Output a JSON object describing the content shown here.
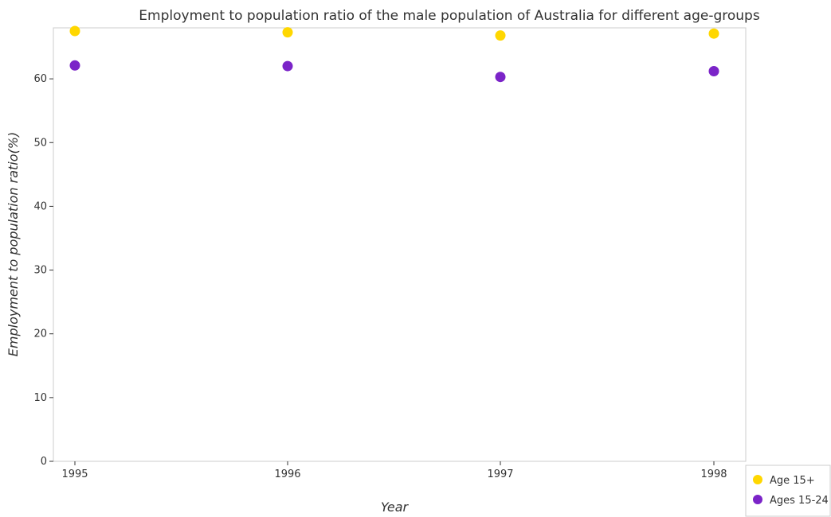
{
  "chart_data": {
    "type": "scatter",
    "title": "Employment to population ratio of the male population of Australia for different age-groups",
    "xlabel": "Year",
    "ylabel": "Employment to population ratio(%)",
    "categories": [
      "1995",
      "1996",
      "1997",
      "1998"
    ],
    "ylim": [
      0,
      68
    ],
    "yticks": [
      0,
      10,
      20,
      30,
      40,
      50,
      60
    ],
    "grid": false,
    "legend_position": "bottom-right",
    "series": [
      {
        "name": "Age 15+",
        "color": "#ffd700",
        "values": [
          67.5,
          67.3,
          66.8,
          67.1
        ]
      },
      {
        "name": "Ages 15-24",
        "color": "#7b24c8",
        "values": [
          62.1,
          62.0,
          60.3,
          61.2
        ]
      }
    ]
  }
}
